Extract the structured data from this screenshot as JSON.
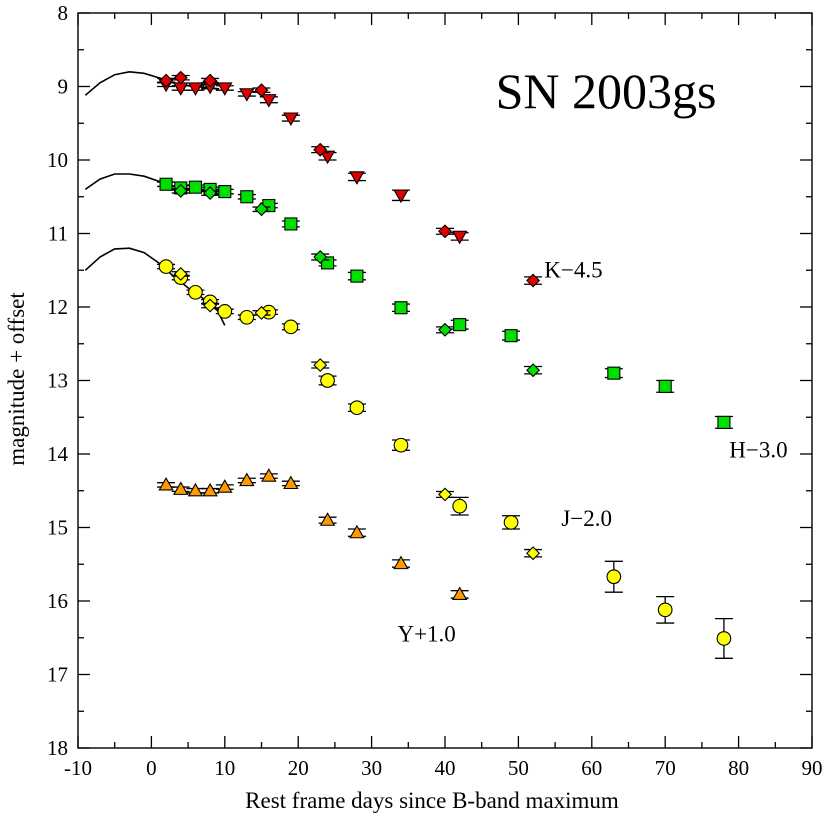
{
  "chart_data": {
    "type": "scatter",
    "title": "SN 2003gs",
    "xlabel": "Rest frame days since B-band maximum",
    "ylabel": "magnitude + offset",
    "xlim": [
      -10,
      90
    ],
    "ylim": [
      18,
      8
    ],
    "y_inverted": true,
    "xticks": [
      "-10",
      "0",
      "10",
      "20",
      "30",
      "40",
      "50",
      "60",
      "70",
      "80",
      "90"
    ],
    "yticks": [
      "8",
      "9",
      "10",
      "11",
      "12",
      "13",
      "14",
      "15",
      "16",
      "17",
      "18"
    ],
    "x_tick_values": [
      -10,
      0,
      10,
      20,
      30,
      40,
      50,
      60,
      70,
      80,
      90
    ],
    "y_tick_values": [
      8,
      9,
      10,
      11,
      12,
      13,
      14,
      15,
      16,
      17,
      18
    ],
    "colors": {
      "K": "#e00000",
      "H": "#00e000",
      "J": "#ffff00",
      "Y": "#ff9900",
      "outline": "#000000"
    },
    "series": [
      {
        "name": "K-4.5 triangles",
        "band": "K",
        "marker": "triangle-down",
        "points": [
          [
            2,
            8.97
          ],
          [
            4,
            9.02
          ],
          [
            6,
            9.02
          ],
          [
            8,
            9.0
          ],
          [
            10,
            9.02
          ],
          [
            13,
            9.1
          ],
          [
            16,
            9.18
          ],
          [
            19,
            9.43
          ],
          [
            24,
            9.95
          ],
          [
            28,
            10.23
          ],
          [
            34,
            10.48
          ],
          [
            42,
            11.04
          ]
        ],
        "errors": [
          0.03,
          0.03,
          0.03,
          0.03,
          0.03,
          0.03,
          0.04,
          0.04,
          0.05,
          0.05,
          0.07,
          0.05
        ]
      },
      {
        "name": "K-4.5 diamonds",
        "band": "K",
        "marker": "diamond",
        "points": [
          [
            2,
            8.92
          ],
          [
            4,
            8.88
          ],
          [
            8,
            8.92
          ],
          [
            15,
            9.05
          ],
          [
            23,
            9.86
          ],
          [
            40,
            10.97
          ],
          [
            52,
            11.64
          ]
        ],
        "errors": [
          0.03,
          0.03,
          0.03,
          0.03,
          0.04,
          0.04,
          0.05
        ]
      },
      {
        "name": "H-3.0 squares",
        "band": "H",
        "marker": "square",
        "points": [
          [
            2,
            10.33
          ],
          [
            4,
            10.38
          ],
          [
            6,
            10.37
          ],
          [
            8,
            10.4
          ],
          [
            10,
            10.43
          ],
          [
            13,
            10.5
          ],
          [
            16,
            10.62
          ],
          [
            19,
            10.87
          ],
          [
            24,
            11.4
          ],
          [
            28,
            11.58
          ],
          [
            34,
            12.01
          ],
          [
            42,
            12.24
          ],
          [
            49,
            12.39
          ],
          [
            63,
            12.9
          ],
          [
            70,
            13.08
          ],
          [
            78,
            13.57
          ]
        ],
        "errors": [
          0.03,
          0.03,
          0.03,
          0.03,
          0.03,
          0.03,
          0.03,
          0.04,
          0.04,
          0.05,
          0.05,
          0.06,
          0.06,
          0.06,
          0.08,
          0.08
        ]
      },
      {
        "name": "H-3.0 diamonds",
        "band": "H",
        "marker": "diamond",
        "points": [
          [
            4,
            10.42
          ],
          [
            8,
            10.45
          ],
          [
            15,
            10.67
          ],
          [
            23,
            11.32
          ],
          [
            40,
            12.31
          ],
          [
            52,
            12.86
          ]
        ],
        "errors": [
          0.03,
          0.03,
          0.03,
          0.04,
          0.04,
          0.05
        ]
      },
      {
        "name": "J-2.0 circles",
        "band": "J",
        "marker": "circle",
        "points": [
          [
            2,
            11.45
          ],
          [
            4,
            11.6
          ],
          [
            6,
            11.8
          ],
          [
            8,
            11.93
          ],
          [
            10,
            12.06
          ],
          [
            13,
            12.14
          ],
          [
            16,
            12.07
          ],
          [
            19,
            12.27
          ],
          [
            24,
            13.0
          ],
          [
            28,
            13.37
          ],
          [
            34,
            13.88
          ],
          [
            42,
            14.71
          ],
          [
            49,
            14.93
          ],
          [
            63,
            15.67
          ],
          [
            70,
            16.12
          ],
          [
            78,
            16.51
          ]
        ],
        "errors": [
          0.03,
          0.03,
          0.03,
          0.03,
          0.03,
          0.03,
          0.03,
          0.04,
          0.06,
          0.05,
          0.07,
          0.12,
          0.09,
          0.21,
          0.18,
          0.27
        ]
      },
      {
        "name": "J-2.0 diamonds",
        "band": "J",
        "marker": "diamond",
        "points": [
          [
            4,
            11.55
          ],
          [
            8,
            11.98
          ],
          [
            15,
            12.08
          ],
          [
            23,
            12.79
          ],
          [
            40,
            14.55
          ],
          [
            52,
            15.35
          ]
        ],
        "errors": [
          0.03,
          0.03,
          0.03,
          0.04,
          0.04,
          0.05
        ]
      },
      {
        "name": "Y+1.0 triangles",
        "band": "Y",
        "marker": "triangle-up",
        "points": [
          [
            2,
            14.42
          ],
          [
            4,
            14.48
          ],
          [
            6,
            14.5
          ],
          [
            8,
            14.5
          ],
          [
            10,
            14.45
          ],
          [
            13,
            14.36
          ],
          [
            16,
            14.3
          ],
          [
            19,
            14.4
          ],
          [
            24,
            14.9
          ],
          [
            28,
            15.07
          ],
          [
            34,
            15.49
          ],
          [
            42,
            15.91
          ]
        ],
        "errors": [
          0.03,
          0.03,
          0.03,
          0.03,
          0.03,
          0.03,
          0.03,
          0.03,
          0.04,
          0.05,
          0.05,
          0.05
        ]
      }
    ],
    "template_curves": [
      {
        "band": "K",
        "points": [
          [
            -9,
            9.12
          ],
          [
            -7,
            8.95
          ],
          [
            -5,
            8.84
          ],
          [
            -3,
            8.8
          ],
          [
            -1,
            8.82
          ],
          [
            1,
            8.88
          ],
          [
            3,
            8.95
          ],
          [
            5,
            8.99
          ],
          [
            7,
            9.01
          ],
          [
            9,
            9.03
          ]
        ]
      },
      {
        "band": "H",
        "points": [
          [
            -9,
            10.4
          ],
          [
            -7,
            10.26
          ],
          [
            -5,
            10.19
          ],
          [
            -3,
            10.19
          ],
          [
            -1,
            10.22
          ],
          [
            1,
            10.29
          ],
          [
            3,
            10.36
          ],
          [
            5,
            10.39
          ],
          [
            7,
            10.42
          ],
          [
            9,
            10.45
          ]
        ]
      },
      {
        "band": "J",
        "points": [
          [
            -9,
            11.5
          ],
          [
            -7,
            11.32
          ],
          [
            -5,
            11.21
          ],
          [
            -3,
            11.2
          ],
          [
            -1,
            11.26
          ],
          [
            1,
            11.4
          ],
          [
            3,
            11.58
          ],
          [
            5,
            11.74
          ],
          [
            7,
            11.88
          ],
          [
            9,
            12.05
          ],
          [
            10,
            12.25
          ]
        ]
      }
    ],
    "annotations": [
      {
        "text": "K−4.5",
        "x": 57.5,
        "y": 11.6
      },
      {
        "text": "H−3.0",
        "x": 82.7,
        "y": 14.05
      },
      {
        "text": "J−2.0",
        "x": 59.3,
        "y": 14.98
      },
      {
        "text": "Y+1.0",
        "x": 37.5,
        "y": 16.55
      }
    ]
  }
}
